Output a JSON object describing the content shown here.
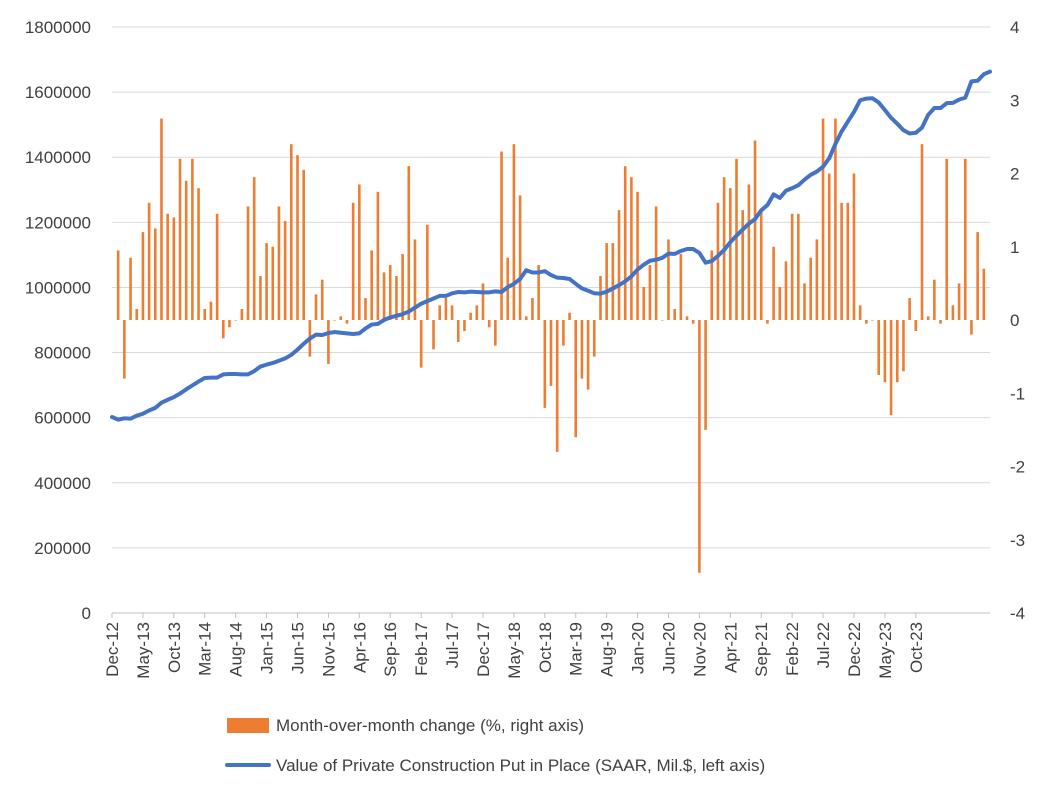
{
  "chart_data": {
    "type": "bar+line",
    "title": "",
    "x_tick_labels": [
      "Dec-12",
      "May-13",
      "Oct-13",
      "Mar-14",
      "Aug-14",
      "Jan-15",
      "Jun-15",
      "Nov-15",
      "Apr-16",
      "Sep-16",
      "Feb-17",
      "Jul-17",
      "Dec-17",
      "May-18",
      "Oct-18",
      "Mar-19",
      "Aug-19",
      "Jan-20",
      "Jun-20",
      "Nov-20",
      "Apr-21",
      "Sep-21",
      "Feb-22",
      "Jul-22",
      "Dec-22",
      "May-23",
      "Oct-23"
    ],
    "x_tick_every": 5,
    "start_month": "Dec-12",
    "left_axis": {
      "min": 0,
      "max": 1800000,
      "ticks": [
        "0",
        "200000",
        "400000",
        "600000",
        "800000",
        "1000000",
        "1200000",
        "1400000",
        "1600000",
        "1800000"
      ]
    },
    "right_axis": {
      "min": -4,
      "max": 4,
      "ticks": [
        "-4",
        "-3",
        "-2",
        "-1",
        "0",
        "1",
        "2",
        "3",
        "4"
      ]
    },
    "series": [
      {
        "name": "Month-over-month change (%, right axis)",
        "type": "bar",
        "axis": "right",
        "color": "#ED7D31",
        "values": [
          0.95,
          -0.8,
          0.85,
          0.15,
          1.2,
          1.6,
          1.25,
          2.75,
          1.45,
          1.4,
          2.2,
          1.9,
          2.2,
          1.8,
          0.15,
          0.25,
          1.45,
          -0.25,
          -0.1,
          0,
          0.15,
          1.55,
          1.95,
          0.6,
          1.05,
          1.0,
          1.55,
          1.35,
          2.4,
          2.25,
          2.05,
          -0.5,
          0.35,
          0.55,
          -0.6,
          0,
          0.05,
          -0.05,
          1.6,
          1.85,
          0.3,
          0.95,
          1.75,
          0.65,
          0.75,
          0.6,
          0.9,
          2.1,
          1.1,
          -0.65,
          1.3,
          -0.4,
          0.2,
          0.3,
          0.2,
          -0.3,
          -0.15,
          0.1,
          0.2,
          0.5,
          -0.1,
          -0.35,
          2.3,
          0.85,
          2.4,
          1.7,
          0.05,
          0.3,
          0.75,
          -1.2,
          -0.9,
          -1.8,
          -0.35,
          0.1,
          -1.6,
          -0.8,
          -0.95,
          -0.5,
          0.6,
          1.05,
          1.05,
          1.5,
          2.1,
          1.95,
          1.75,
          0.45,
          0.75,
          1.55,
          0.0,
          1.1,
          0.15,
          0.9,
          0.05,
          -0.05,
          -3.45,
          -1.5,
          0.95,
          1.6,
          1.95,
          1.8,
          2.2,
          1.5,
          1.85,
          2.45,
          1.5,
          -0.05,
          1.0,
          0.45,
          0.8,
          1.45,
          1.45,
          0.5,
          0.85,
          1.1,
          2.75,
          2.0,
          2.75,
          1.6,
          1.6,
          2.0,
          0.2,
          -0.05,
          0,
          -0.75,
          -0.85,
          -1.3,
          -0.85,
          -0.7,
          0.3,
          -0.15,
          2.4,
          0.05,
          0.55,
          -0.05,
          2.2,
          0.2,
          0.5,
          2.2,
          -0.2,
          1.2,
          0.7
        ],
        "index_offset": 1
      },
      {
        "name": "Value of Private Construction Put in Place (SAAR, Mil.$, left axis)",
        "type": "line",
        "axis": "left",
        "color": "#4472C4",
        "values": [
          602000,
          594000,
          598000,
          597000,
          606000,
          612000,
          622000,
          630000,
          646000,
          655000,
          663000,
          674000,
          687000,
          699000,
          711000,
          722000,
          723000,
          723000,
          733000,
          734000,
          734000,
          733000,
          733000,
          743000,
          757000,
          763000,
          768000,
          775000,
          782000,
          793000,
          809000,
          827000,
          843000,
          855000,
          854000,
          860000,
          863000,
          861000,
          859000,
          857000,
          859000,
          874000,
          886000,
          888000,
          900000,
          908000,
          913000,
          918000,
          926000,
          938000,
          950000,
          958000,
          966000,
          974000,
          974000,
          982000,
          986000,
          985000,
          987000,
          986000,
          985000,
          985000,
          988000,
          986000,
          1001000,
          1011000,
          1026000,
          1053000,
          1046000,
          1046000,
          1050000,
          1038000,
          1030000,
          1029000,
          1026000,
          1011000,
          997000,
          990000,
          982000,
          981000,
          987000,
          997000,
          1007000,
          1019000,
          1034000,
          1055000,
          1070000,
          1082000,
          1085000,
          1091000,
          1104000,
          1103000,
          1112000,
          1118000,
          1118000,
          1106000,
          1076000,
          1081000,
          1097000,
          1115000,
          1139000,
          1159000,
          1178000,
          1196000,
          1210000,
          1237000,
          1253000,
          1286000,
          1275000,
          1297000,
          1305000,
          1314000,
          1331000,
          1346000,
          1356000,
          1371000,
          1397000,
          1441000,
          1479000,
          1509000,
          1539000,
          1575000,
          1580000,
          1581000,
          1568000,
          1545000,
          1521000,
          1503000,
          1483000,
          1473000,
          1475000,
          1491000,
          1530000,
          1551000,
          1551000,
          1566000,
          1567000,
          1577000,
          1583000,
          1633000,
          1635000,
          1655000,
          1663000
        ]
      }
    ],
    "legend_position": "bottom"
  }
}
